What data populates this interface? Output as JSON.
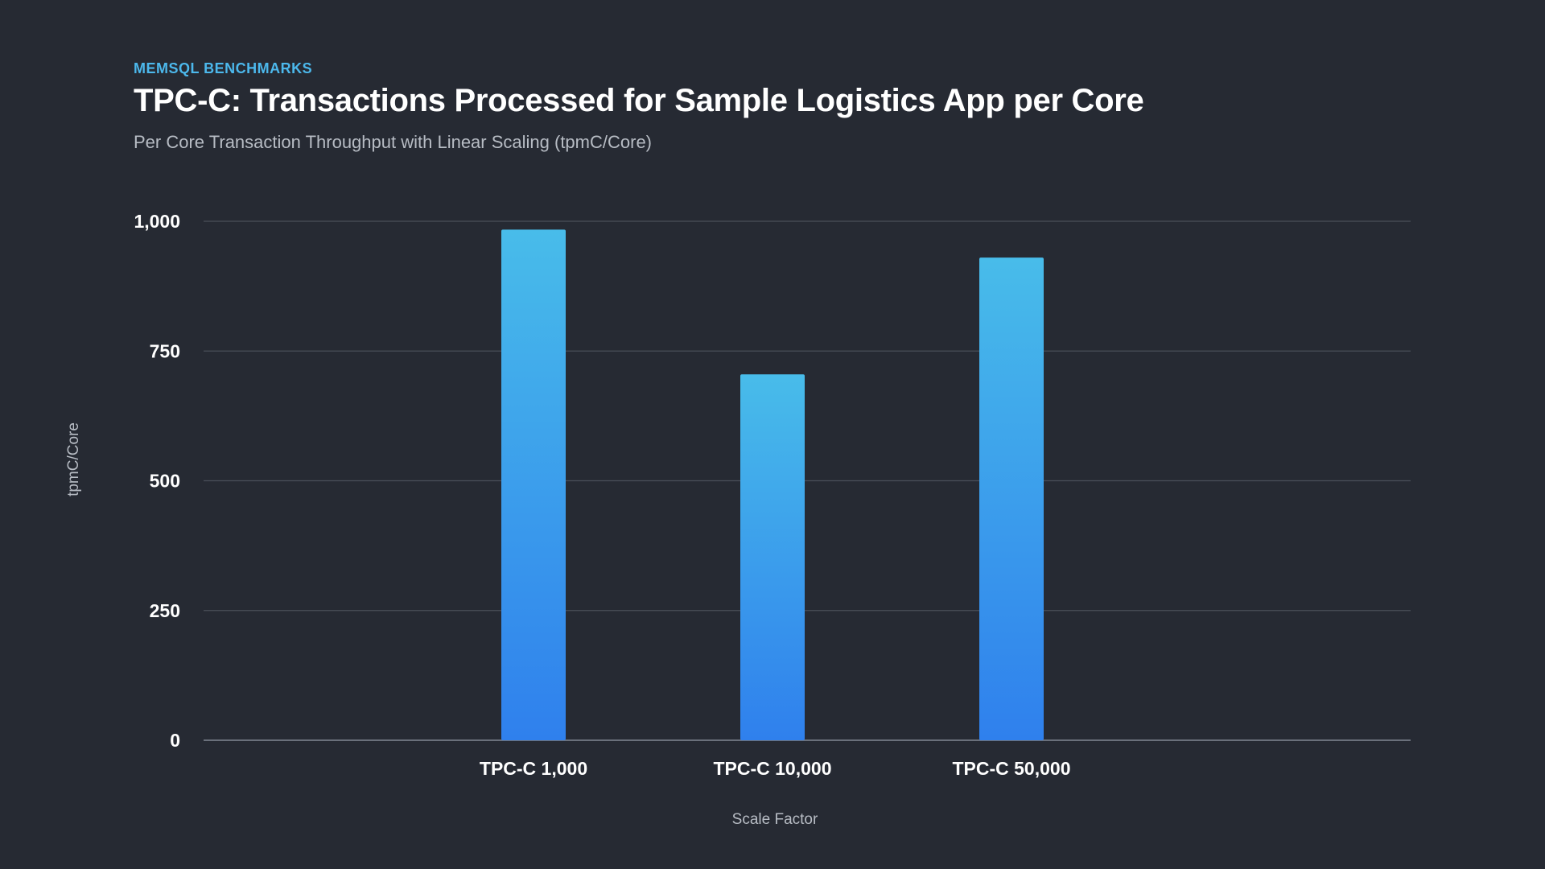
{
  "header": {
    "eyebrow": "MEMSQL BENCHMARKS",
    "title": "TPC-C: Transactions Processed for Sample Logistics App per Core",
    "subtitle": "Per Core Transaction Throughput with Linear Scaling (tpmC/Core)"
  },
  "colors": {
    "background": "#262a33",
    "bar_top": "#48bcea",
    "bar_bottom": "#2f80ed",
    "gridline": "#4a4f59",
    "accent": "#4cb8ec"
  },
  "chart_data": {
    "type": "bar",
    "categories": [
      "TPC-C 1,000",
      "TPC-C 10,000",
      "TPC-C 50,000"
    ],
    "values": [
      984,
      705,
      930
    ],
    "title": "TPC-C: Transactions Processed for Sample Logistics App per Core",
    "xlabel": "Scale Factor",
    "ylabel": "tpmC/Core",
    "ylim": [
      0,
      1000
    ],
    "yticks": [
      0,
      250,
      500,
      750,
      1000
    ],
    "ytick_labels": [
      "0",
      "250",
      "500",
      "750",
      "1,000"
    ],
    "grid": true
  }
}
